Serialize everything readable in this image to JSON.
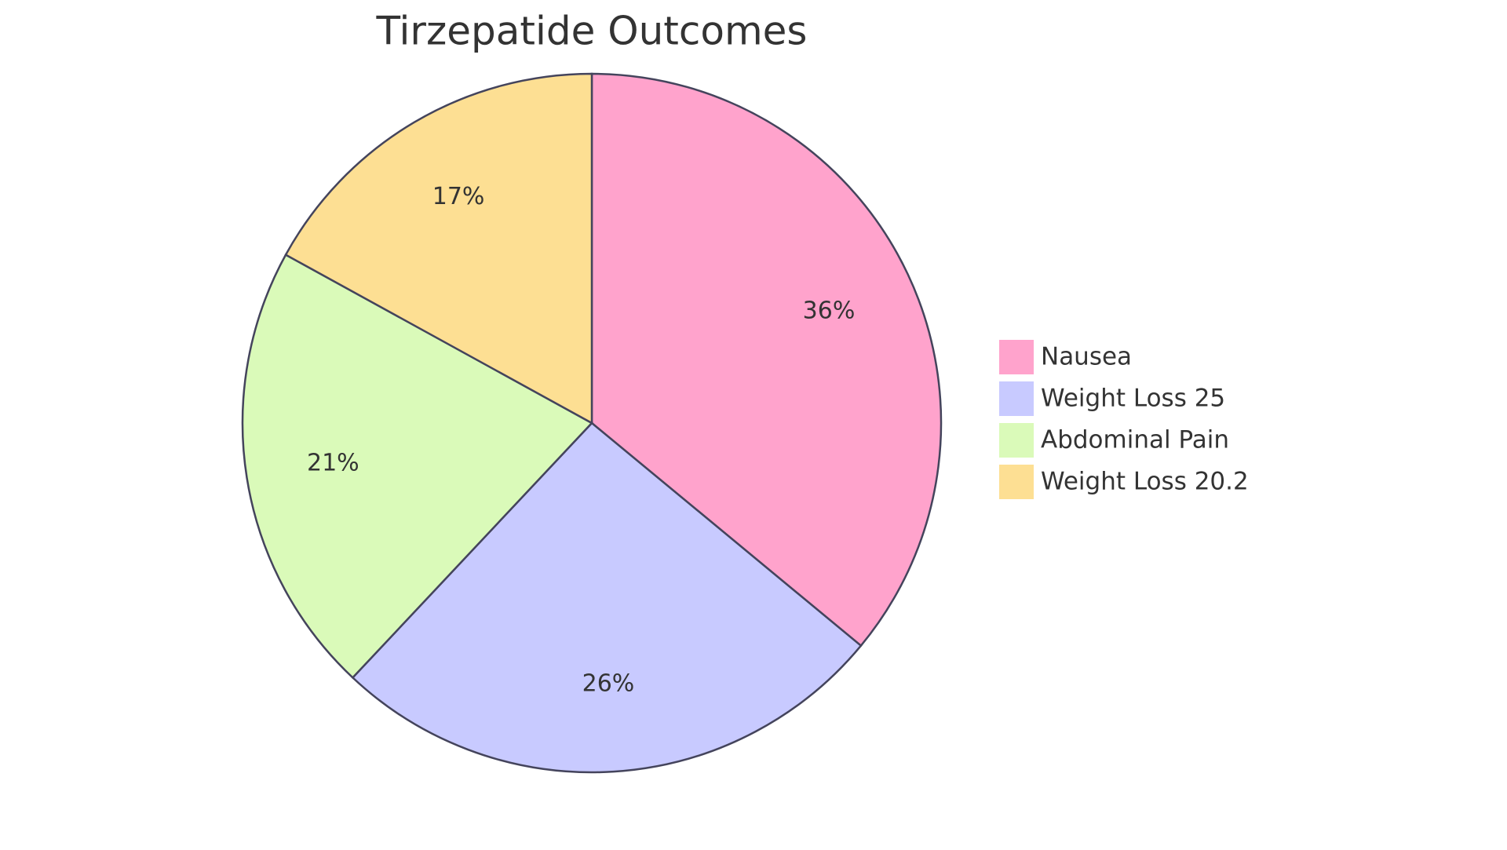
{
  "chart_data": {
    "type": "pie",
    "title": "Tirzepatide Outcomes",
    "categories": [
      "Nausea",
      "Weight Loss 25",
      "Abdominal Pain",
      "Weight Loss 20.2"
    ],
    "values": [
      36,
      26,
      21,
      17
    ],
    "value_labels": [
      "36%",
      "26%",
      "21%",
      "17%"
    ],
    "colors": [
      "#ffa3cc",
      "#c8caff",
      "#dafab9",
      "#fddf93"
    ],
    "legend": "right"
  }
}
